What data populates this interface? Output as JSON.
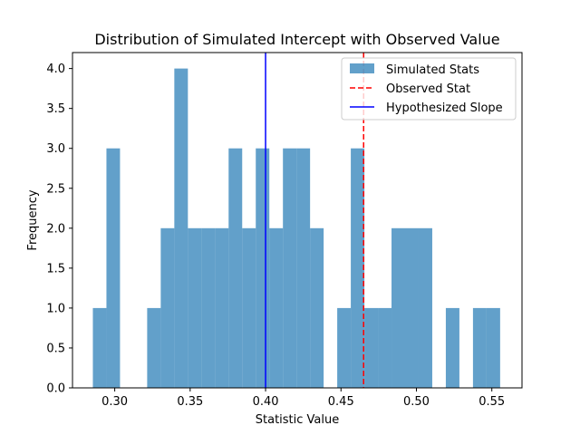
{
  "chart_data": {
    "type": "bar",
    "title": "Distribution of Simulated Intercept with Observed Value",
    "xlabel": "Statistic Value",
    "ylabel": "Frequency",
    "xlim": [
      0.272,
      0.57
    ],
    "ylim": [
      0,
      4.2
    ],
    "grid": false,
    "legend_position": "top-right",
    "bin_width": 0.009,
    "histogram": {
      "name": "Simulated Stats",
      "color": "#1f77b4",
      "opacity": 0.7,
      "bins": [
        {
          "x0": 0.2855,
          "x1": 0.2945,
          "count": 1
        },
        {
          "x0": 0.2945,
          "x1": 0.3035,
          "count": 3
        },
        {
          "x0": 0.3215,
          "x1": 0.3305,
          "count": 1
        },
        {
          "x0": 0.3305,
          "x1": 0.3395,
          "count": 2
        },
        {
          "x0": 0.3395,
          "x1": 0.3485,
          "count": 4
        },
        {
          "x0": 0.3485,
          "x1": 0.3575,
          "count": 2
        },
        {
          "x0": 0.3575,
          "x1": 0.3665,
          "count": 2
        },
        {
          "x0": 0.3665,
          "x1": 0.3755,
          "count": 2
        },
        {
          "x0": 0.3755,
          "x1": 0.3845,
          "count": 3
        },
        {
          "x0": 0.3845,
          "x1": 0.3935,
          "count": 2
        },
        {
          "x0": 0.3935,
          "x1": 0.4025,
          "count": 3
        },
        {
          "x0": 0.4025,
          "x1": 0.4115,
          "count": 2
        },
        {
          "x0": 0.4115,
          "x1": 0.4205,
          "count": 3
        },
        {
          "x0": 0.4205,
          "x1": 0.4295,
          "count": 3
        },
        {
          "x0": 0.4295,
          "x1": 0.4385,
          "count": 2
        },
        {
          "x0": 0.4475,
          "x1": 0.4565,
          "count": 1
        },
        {
          "x0": 0.4565,
          "x1": 0.4655,
          "count": 3
        },
        {
          "x0": 0.4655,
          "x1": 0.4745,
          "count": 1
        },
        {
          "x0": 0.4745,
          "x1": 0.4835,
          "count": 1
        },
        {
          "x0": 0.4835,
          "x1": 0.4925,
          "count": 2
        },
        {
          "x0": 0.4925,
          "x1": 0.5015,
          "count": 2
        },
        {
          "x0": 0.5015,
          "x1": 0.5105,
          "count": 2
        },
        {
          "x0": 0.5195,
          "x1": 0.5285,
          "count": 1
        },
        {
          "x0": 0.5375,
          "x1": 0.5465,
          "count": 1
        },
        {
          "x0": 0.5465,
          "x1": 0.5555,
          "count": 1
        }
      ]
    },
    "lines": [
      {
        "name": "Observed Stat",
        "x": 0.465,
        "color": "#ff0000",
        "style": "dashed"
      },
      {
        "name": "Hypothesized Slope",
        "x": 0.4,
        "color": "#0000ff",
        "style": "solid"
      }
    ],
    "x_ticks": [
      {
        "value": 0.3,
        "label": "0.30"
      },
      {
        "value": 0.35,
        "label": "0.35"
      },
      {
        "value": 0.4,
        "label": "0.40"
      },
      {
        "value": 0.45,
        "label": "0.45"
      },
      {
        "value": 0.5,
        "label": "0.50"
      },
      {
        "value": 0.55,
        "label": "0.55"
      }
    ],
    "y_ticks": [
      {
        "value": 0.0,
        "label": "0.0"
      },
      {
        "value": 0.5,
        "label": "0.5"
      },
      {
        "value": 1.0,
        "label": "1.0"
      },
      {
        "value": 1.5,
        "label": "1.5"
      },
      {
        "value": 2.0,
        "label": "2.0"
      },
      {
        "value": 2.5,
        "label": "2.5"
      },
      {
        "value": 3.0,
        "label": "3.0"
      },
      {
        "value": 3.5,
        "label": "3.5"
      },
      {
        "value": 4.0,
        "label": "4.0"
      }
    ]
  }
}
